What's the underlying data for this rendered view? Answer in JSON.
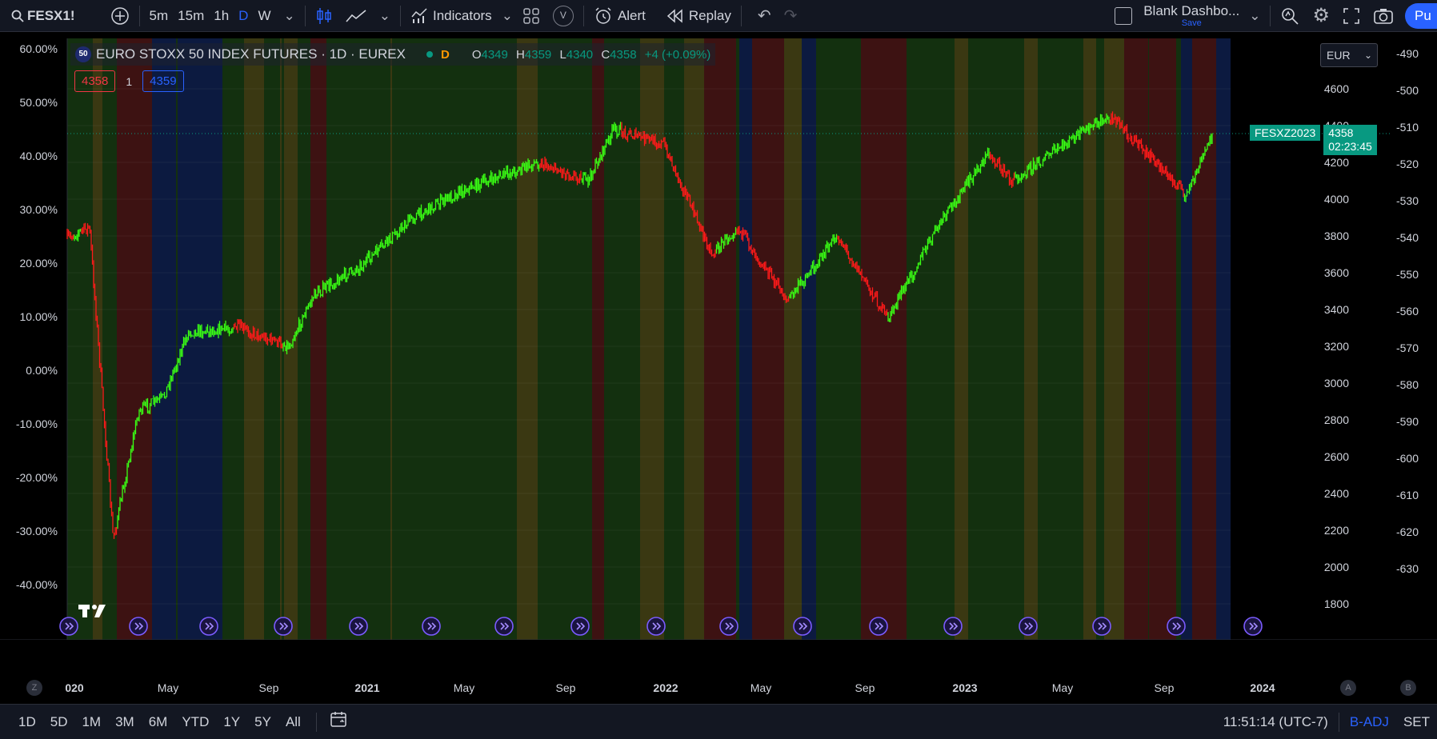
{
  "topbar": {
    "symbol": "FESX1!",
    "intervals": [
      "5m",
      "15m",
      "1h",
      "D",
      "W"
    ],
    "active_interval": "D",
    "indicators_label": "Indicators",
    "alert_label": "Alert",
    "replay_label": "Replay",
    "layout_name": "Blank Dashbo...",
    "layout_save": "Save",
    "publish_label": "Pu",
    "v_badge": "V"
  },
  "legend": {
    "badge": "50",
    "title": "EURO STOXX 50 INDEX FUTURES · 1D · EUREX",
    "session_badge": "D",
    "o_label": "O",
    "o_value": "4349",
    "h_label": "H",
    "h_value": "4359",
    "l_label": "L",
    "l_value": "4340",
    "c_label": "C",
    "c_value": "4358",
    "change": "+4 (+0.09%)",
    "bid": "4358",
    "spread": "1",
    "ask": "4359"
  },
  "currency": "EUR",
  "price_tag": {
    "symbol": "FESXZ2023",
    "price": "4358",
    "countdown": "02:23:45"
  },
  "left_axis": [
    "60.00%",
    "50.00%",
    "40.00%",
    "30.00%",
    "20.00%",
    "10.00%",
    "0.00%",
    "-10.00%",
    "-20.00%",
    "-30.00%",
    "-40.00%"
  ],
  "price_axis": [
    "4600",
    "4400",
    "4200",
    "4000",
    "3800",
    "3600",
    "3400",
    "3200",
    "3000",
    "2800",
    "2600",
    "2400",
    "2200",
    "2000",
    "1800"
  ],
  "right_axis": [
    "-490",
    "-500",
    "-510",
    "-520",
    "-530",
    "-540",
    "-550",
    "-560",
    "-570",
    "-580",
    "-590",
    "-600",
    "-610",
    "-620",
    "-630"
  ],
  "time_axis": [
    "020",
    "May",
    "Sep",
    "2021",
    "May",
    "Sep",
    "2022",
    "May",
    "Sep",
    "2023",
    "May",
    "Sep",
    "2024"
  ],
  "time_axis_bold": [
    "020",
    "2021",
    "2022",
    "2023",
    "2024"
  ],
  "axis_buttons": {
    "left": "Z",
    "auto": "A",
    "right": "B"
  },
  "bottombar": {
    "ranges": [
      "1D",
      "5D",
      "1M",
      "3M",
      "6M",
      "YTD",
      "1Y",
      "5Y",
      "All"
    ],
    "time": "11:51:14 (UTC-7)",
    "adj": "B-ADJ",
    "session": "SET"
  },
  "colors": {
    "up": "#39ff14",
    "down": "#ff1a1a",
    "bg_green": "#13300f",
    "bg_red": "#3d1212",
    "bg_yellow": "#3a3812",
    "bg_blue": "#0c1a40",
    "accent": "#2962ff",
    "tag": "#089981"
  },
  "chart_data": {
    "type": "line",
    "symbol": "EURO STOXX 50 INDEX FUTURES",
    "interval": "1D",
    "price_range": [
      1700,
      4700
    ],
    "points": [
      {
        "date": "2020-01",
        "price": 3780
      },
      {
        "date": "2020-02",
        "price": 3850
      },
      {
        "date": "2020-03",
        "price": 2150
      },
      {
        "date": "2020-04",
        "price": 2850
      },
      {
        "date": "2020-05",
        "price": 2920
      },
      {
        "date": "2020-06",
        "price": 3280
      },
      {
        "date": "2020-08",
        "price": 3300
      },
      {
        "date": "2020-10",
        "price": 3200
      },
      {
        "date": "2020-11",
        "price": 3480
      },
      {
        "date": "2021-01",
        "price": 3650
      },
      {
        "date": "2021-03",
        "price": 3900
      },
      {
        "date": "2021-05",
        "price": 4050
      },
      {
        "date": "2021-08",
        "price": 4200
      },
      {
        "date": "2021-10",
        "price": 4100
      },
      {
        "date": "2021-11",
        "price": 4380
      },
      {
        "date": "2022-01",
        "price": 4300
      },
      {
        "date": "2022-03",
        "price": 3700
      },
      {
        "date": "2022-04",
        "price": 3850
      },
      {
        "date": "2022-06",
        "price": 3450
      },
      {
        "date": "2022-08",
        "price": 3800
      },
      {
        "date": "2022-10",
        "price": 3350
      },
      {
        "date": "2022-12",
        "price": 3850
      },
      {
        "date": "2023-02",
        "price": 4250
      },
      {
        "date": "2023-03",
        "price": 4100
      },
      {
        "date": "2023-06",
        "price": 4380
      },
      {
        "date": "2023-07",
        "price": 4450
      },
      {
        "date": "2023-10",
        "price": 4020
      },
      {
        "date": "2023-11",
        "price": 4358
      }
    ]
  }
}
